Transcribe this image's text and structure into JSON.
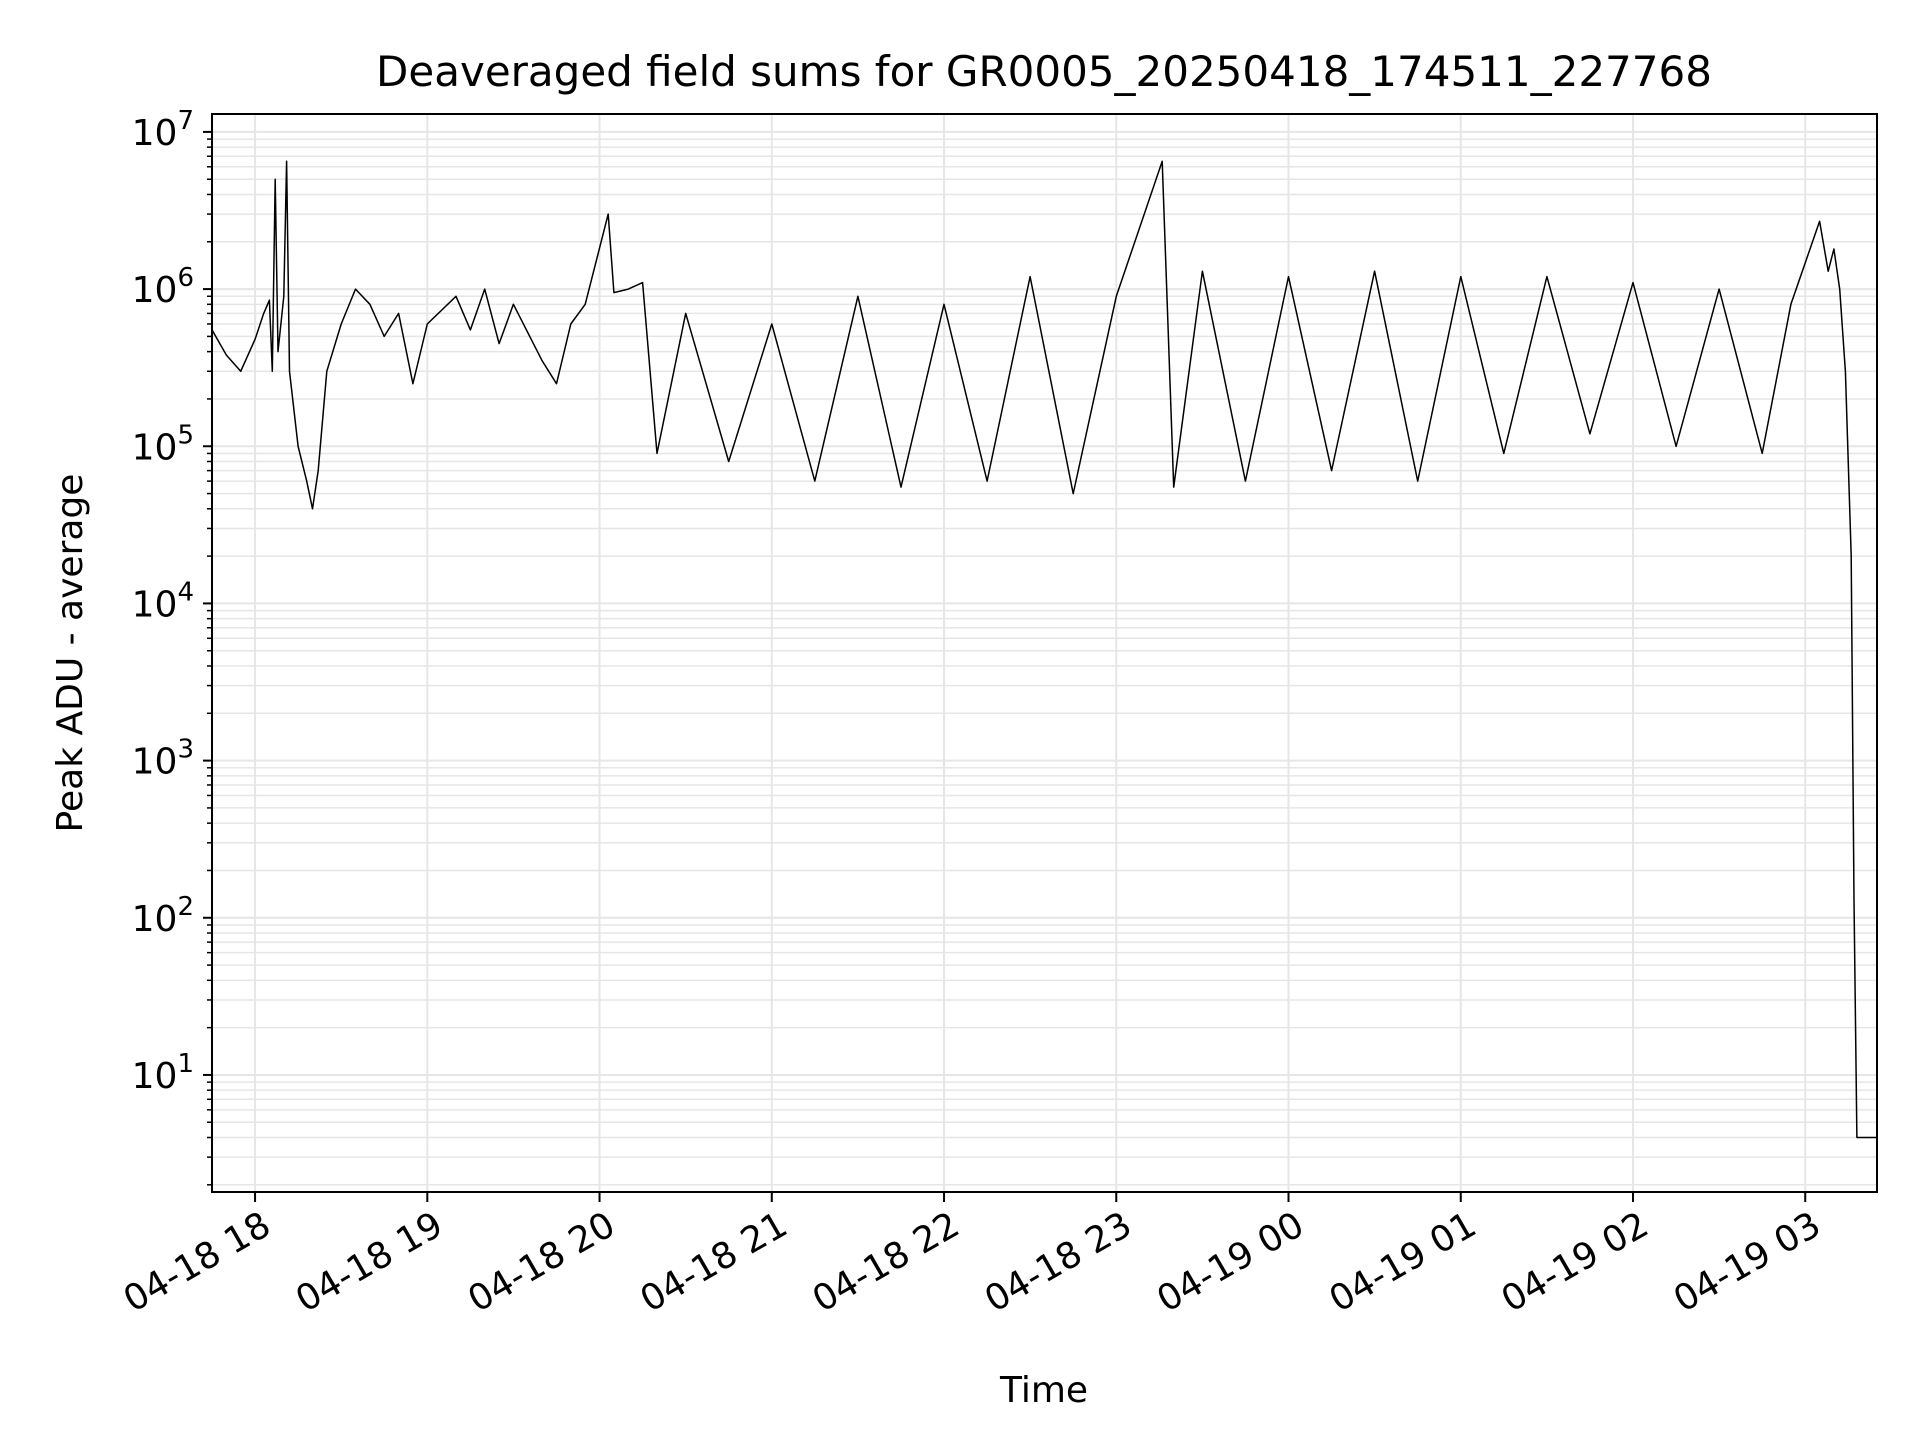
{
  "chart_data": {
    "type": "line",
    "title": "Deaveraged field sums for GR0005_20250418_174511_227768",
    "xlabel": "Time",
    "ylabel": "Peak ADU - average",
    "y_scale": "log",
    "y_range": [
      1.8,
      13000000
    ],
    "x_range": [
      "2025-04-18 17:45",
      "2025-04-19 03:25"
    ],
    "y_ticks": [
      {
        "base": "10",
        "exp": "1",
        "value": 10
      },
      {
        "base": "10",
        "exp": "2",
        "value": 100
      },
      {
        "base": "10",
        "exp": "3",
        "value": 1000
      },
      {
        "base": "10",
        "exp": "4",
        "value": 10000
      },
      {
        "base": "10",
        "exp": "5",
        "value": 100000
      },
      {
        "base": "10",
        "exp": "6",
        "value": 1000000
      },
      {
        "base": "10",
        "exp": "7",
        "value": 10000000
      }
    ],
    "x_ticks": [
      {
        "label": "04-18 18",
        "time": "2025-04-18 18:00"
      },
      {
        "label": "04-18 19",
        "time": "2025-04-18 19:00"
      },
      {
        "label": "04-18 20",
        "time": "2025-04-18 20:00"
      },
      {
        "label": "04-18 21",
        "time": "2025-04-18 21:00"
      },
      {
        "label": "04-18 22",
        "time": "2025-04-18 22:00"
      },
      {
        "label": "04-18 23",
        "time": "2025-04-18 23:00"
      },
      {
        "label": "04-19 00",
        "time": "2025-04-19 00:00"
      },
      {
        "label": "04-19 01",
        "time": "2025-04-19 01:00"
      },
      {
        "label": "04-19 02",
        "time": "2025-04-19 02:00"
      },
      {
        "label": "04-19 03",
        "time": "2025-04-19 03:00"
      }
    ],
    "grid": true,
    "line_color": "#000000",
    "grid_color": "#e6e6e6",
    "series": [
      {
        "points": [
          [
            "2025-04-18 17:45",
            550000
          ],
          [
            "2025-04-18 17:50",
            380000
          ],
          [
            "2025-04-18 17:55",
            300000
          ],
          [
            "2025-04-18 18:00",
            480000
          ],
          [
            "2025-04-18 18:03",
            700000
          ],
          [
            "2025-04-18 18:05",
            850000
          ],
          [
            "2025-04-18 18:06",
            300000
          ],
          [
            "2025-04-18 18:07",
            5000000
          ],
          [
            "2025-04-18 18:08",
            400000
          ],
          [
            "2025-04-18 18:10",
            900000
          ],
          [
            "2025-04-18 18:11",
            6500000
          ],
          [
            "2025-04-18 18:12",
            300000
          ],
          [
            "2025-04-18 18:15",
            100000
          ],
          [
            "2025-04-18 18:18",
            60000
          ],
          [
            "2025-04-18 18:20",
            40000
          ],
          [
            "2025-04-18 18:22",
            70000
          ],
          [
            "2025-04-18 18:25",
            300000
          ],
          [
            "2025-04-18 18:30",
            600000
          ],
          [
            "2025-04-18 18:35",
            1000000
          ],
          [
            "2025-04-18 18:40",
            800000
          ],
          [
            "2025-04-18 18:45",
            500000
          ],
          [
            "2025-04-18 18:50",
            700000
          ],
          [
            "2025-04-18 18:55",
            250000
          ],
          [
            "2025-04-18 19:00",
            600000
          ],
          [
            "2025-04-18 19:10",
            900000
          ],
          [
            "2025-04-18 19:15",
            550000
          ],
          [
            "2025-04-18 19:20",
            1000000
          ],
          [
            "2025-04-18 19:25",
            450000
          ],
          [
            "2025-04-18 19:30",
            800000
          ],
          [
            "2025-04-18 19:40",
            350000
          ],
          [
            "2025-04-18 19:45",
            250000
          ],
          [
            "2025-04-18 19:50",
            600000
          ],
          [
            "2025-04-18 19:55",
            800000
          ],
          [
            "2025-04-18 20:03",
            3000000
          ],
          [
            "2025-04-18 20:05",
            950000
          ],
          [
            "2025-04-18 20:10",
            1000000
          ],
          [
            "2025-04-18 20:15",
            1100000
          ],
          [
            "2025-04-18 20:20",
            90000
          ],
          [
            "2025-04-18 20:30",
            700000
          ],
          [
            "2025-04-18 20:45",
            80000
          ],
          [
            "2025-04-18 21:00",
            600000
          ],
          [
            "2025-04-18 21:15",
            60000
          ],
          [
            "2025-04-18 21:30",
            900000
          ],
          [
            "2025-04-18 21:45",
            55000
          ],
          [
            "2025-04-18 22:00",
            800000
          ],
          [
            "2025-04-18 22:15",
            60000
          ],
          [
            "2025-04-18 22:30",
            1200000
          ],
          [
            "2025-04-18 22:45",
            50000
          ],
          [
            "2025-04-18 23:00",
            900000
          ],
          [
            "2025-04-18 23:16",
            6500000
          ],
          [
            "2025-04-18 23:20",
            55000
          ],
          [
            "2025-04-18 23:30",
            1300000
          ],
          [
            "2025-04-18 23:45",
            60000
          ],
          [
            "2025-04-19 00:00",
            1200000
          ],
          [
            "2025-04-19 00:15",
            70000
          ],
          [
            "2025-04-19 00:30",
            1300000
          ],
          [
            "2025-04-19 00:45",
            60000
          ],
          [
            "2025-04-19 01:00",
            1200000
          ],
          [
            "2025-04-19 01:15",
            90000
          ],
          [
            "2025-04-19 01:30",
            1200000
          ],
          [
            "2025-04-19 01:45",
            120000
          ],
          [
            "2025-04-19 02:00",
            1100000
          ],
          [
            "2025-04-19 02:15",
            100000
          ],
          [
            "2025-04-19 02:30",
            1000000
          ],
          [
            "2025-04-19 02:45",
            90000
          ],
          [
            "2025-04-19 02:55",
            800000
          ],
          [
            "2025-04-19 03:05",
            2700000
          ],
          [
            "2025-04-19 03:08",
            1300000
          ],
          [
            "2025-04-19 03:10",
            1800000
          ],
          [
            "2025-04-19 03:12",
            1000000
          ],
          [
            "2025-04-19 03:14",
            300000
          ],
          [
            "2025-04-19 03:16",
            20000
          ],
          [
            "2025-04-19 03:17",
            130
          ],
          [
            "2025-04-19 03:18",
            4
          ],
          [
            "2025-04-19 03:25",
            4
          ]
        ]
      }
    ]
  }
}
